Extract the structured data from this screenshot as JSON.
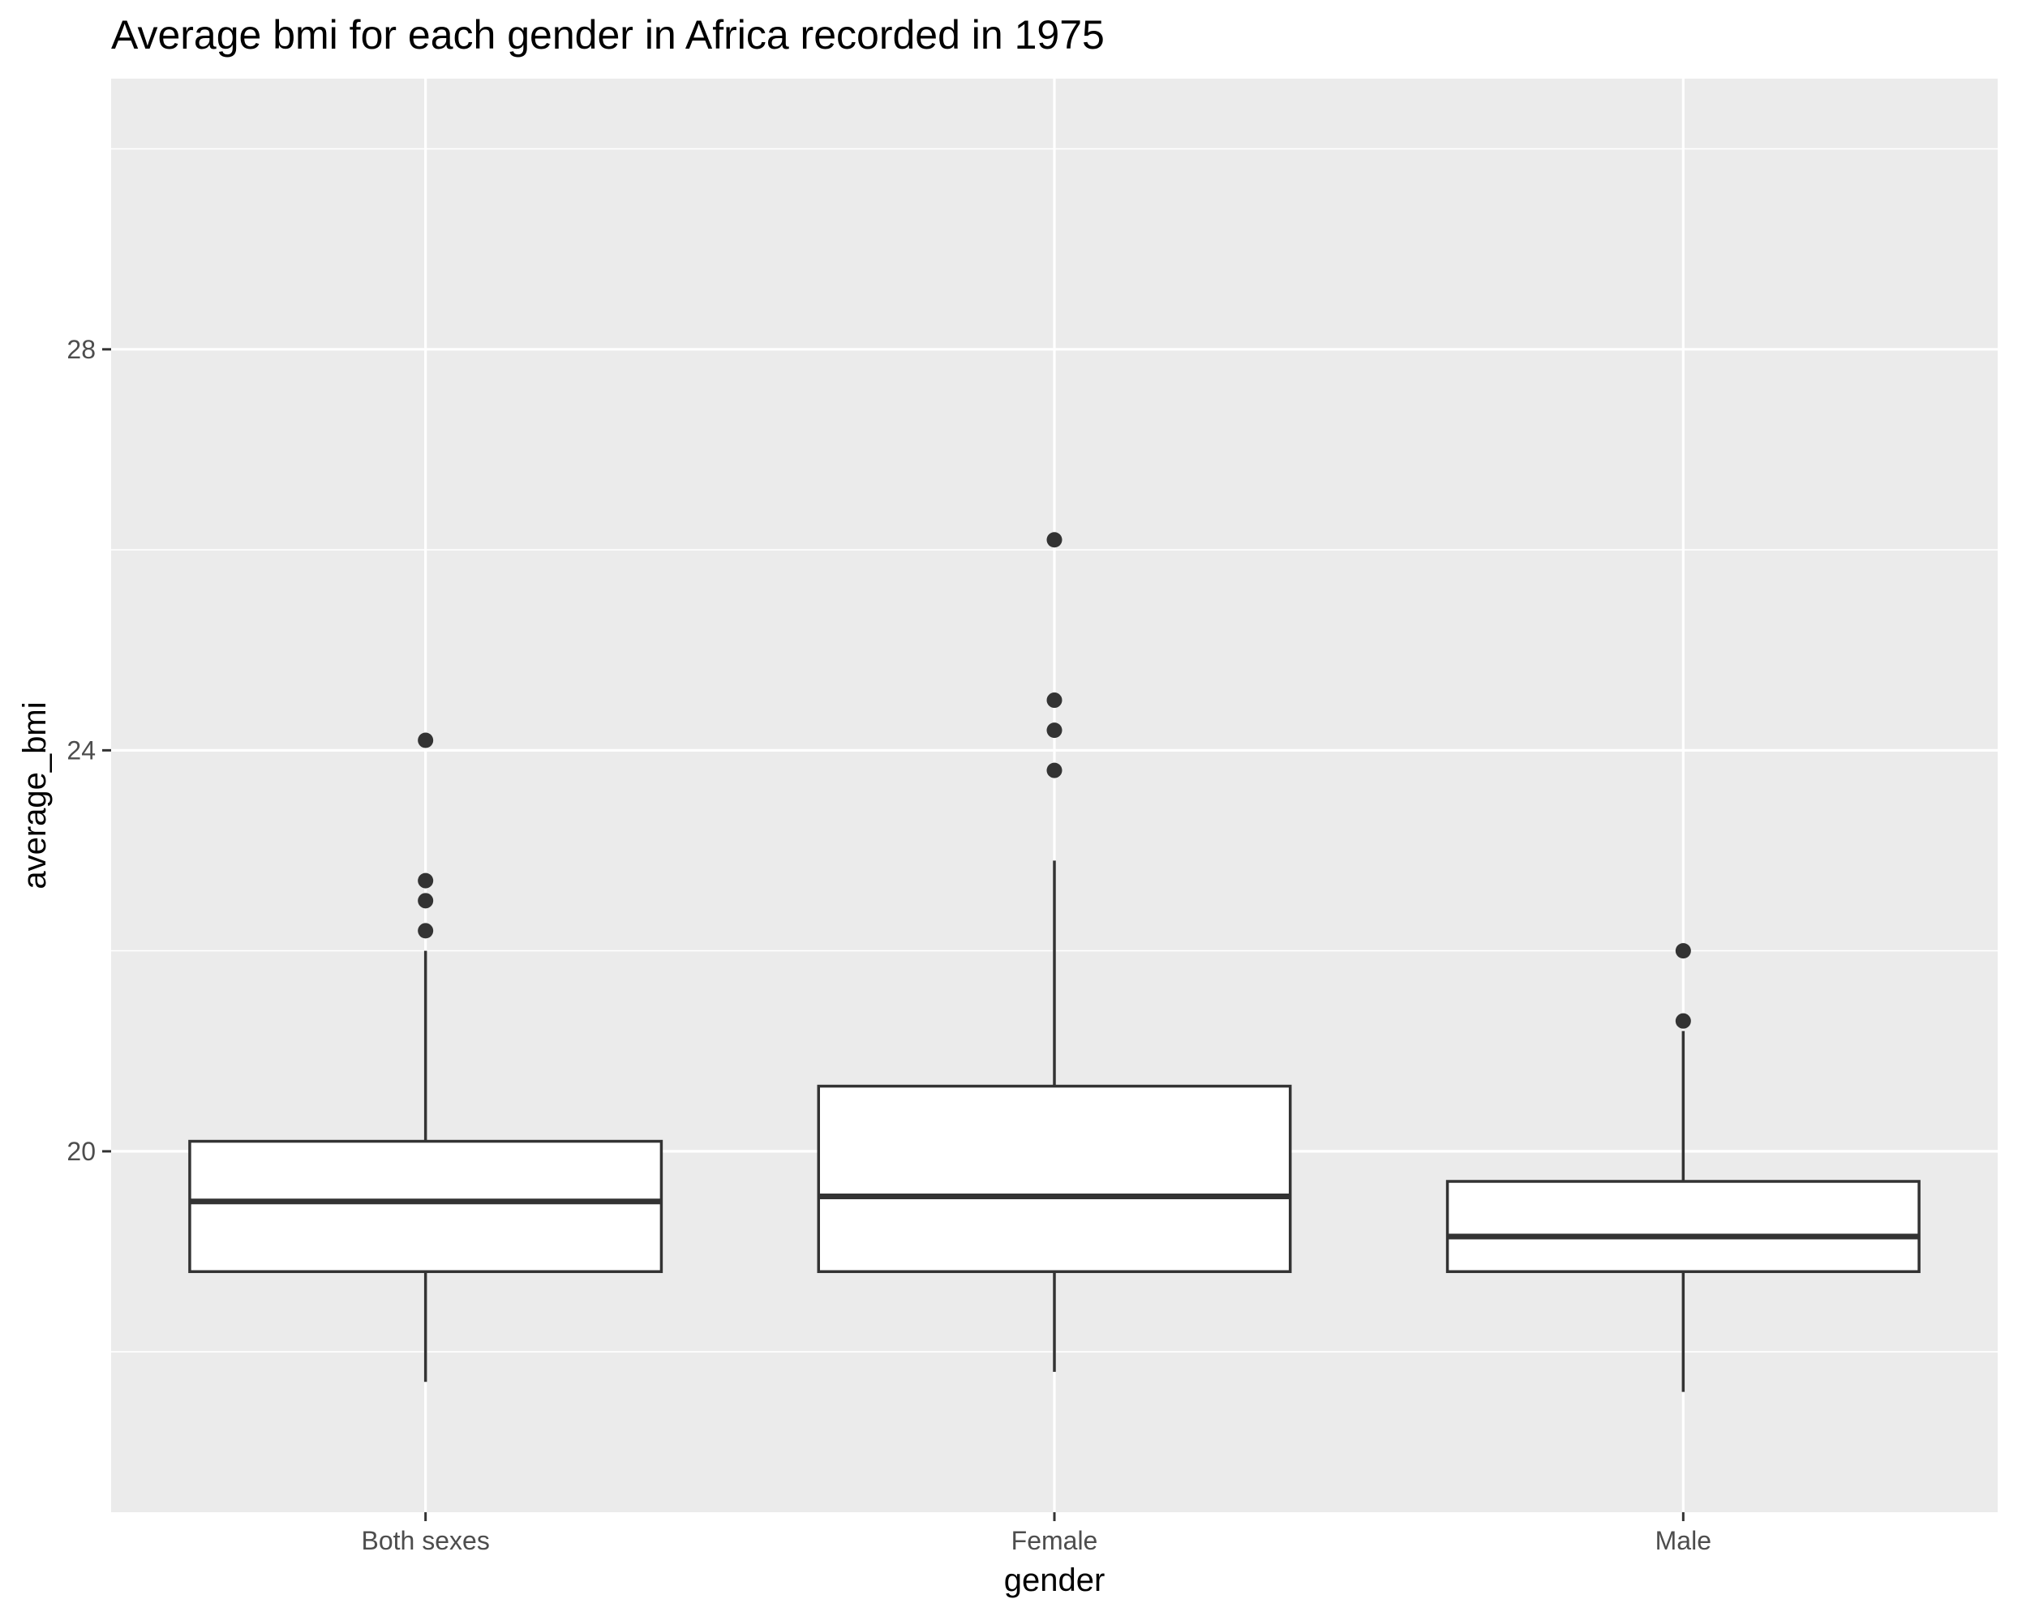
{
  "chart_data": {
    "type": "boxplot",
    "title": "Average bmi for each gender in Africa recorded in 1975",
    "xlabel": "gender",
    "ylabel": "average_bmi",
    "ylim": [
      16.4,
      30.7
    ],
    "y_major_ticks": [
      20,
      24,
      28
    ],
    "y_minor_ticks": [
      18,
      22,
      26,
      30
    ],
    "grid": true,
    "colors": {
      "panel": "#EBEBEB",
      "grid": "#FFFFFF",
      "box_fill": "#FFFFFF",
      "box_line": "#333333",
      "outlier": "#333333",
      "axis_tick": "#333333"
    },
    "categories": [
      "Both sexes",
      "Female",
      "Male"
    ],
    "boxes": [
      {
        "category": "Both sexes",
        "whisker_low": 17.7,
        "q1": 18.8,
        "median": 19.5,
        "q3": 20.1,
        "whisker_high": 22.0,
        "outliers": [
          24.1,
          22.7,
          22.5,
          22.2
        ]
      },
      {
        "category": "Female",
        "whisker_low": 17.8,
        "q1": 18.8,
        "median": 19.55,
        "q3": 20.65,
        "whisker_high": 22.9,
        "outliers": [
          26.1,
          24.5,
          24.2,
          23.8
        ]
      },
      {
        "category": "Male",
        "whisker_low": 17.6,
        "q1": 18.8,
        "median": 19.15,
        "q3": 19.7,
        "whisker_high": 21.2,
        "outliers": [
          22.0,
          21.3
        ]
      }
    ]
  }
}
